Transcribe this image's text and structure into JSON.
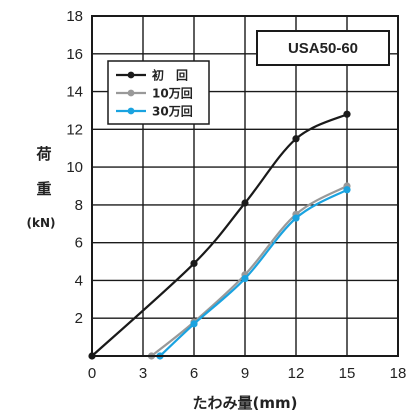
{
  "chart_data": {
    "type": "line",
    "xlabel": "たわみ量(mm)",
    "ylabel_lines": [
      "荷",
      "重"
    ],
    "ylabel_unit": "(kN)",
    "xlim": [
      0,
      18
    ],
    "ylim": [
      0,
      18
    ],
    "xticks": [
      0,
      3,
      6,
      9,
      12,
      15,
      18
    ],
    "yticks": [
      2,
      4,
      6,
      8,
      10,
      12,
      14,
      16,
      18
    ],
    "grid": true,
    "model_label": "USA50-60",
    "legend_position": "top-left",
    "series": [
      {
        "name": "初　回",
        "color": "#1a1a1a",
        "x": [
          0,
          6,
          9,
          12,
          15
        ],
        "y": [
          0,
          4.9,
          8.1,
          11.5,
          12.8
        ]
      },
      {
        "name": "10万回",
        "color": "#999999",
        "x": [
          3.5,
          6,
          9,
          12,
          15
        ],
        "y": [
          0,
          1.8,
          4.3,
          7.5,
          9.0
        ]
      },
      {
        "name": "30万回",
        "color": "#1aa3e0",
        "x": [
          4.0,
          6,
          9,
          12,
          15
        ],
        "y": [
          0,
          1.7,
          4.1,
          7.3,
          8.8
        ]
      }
    ]
  }
}
